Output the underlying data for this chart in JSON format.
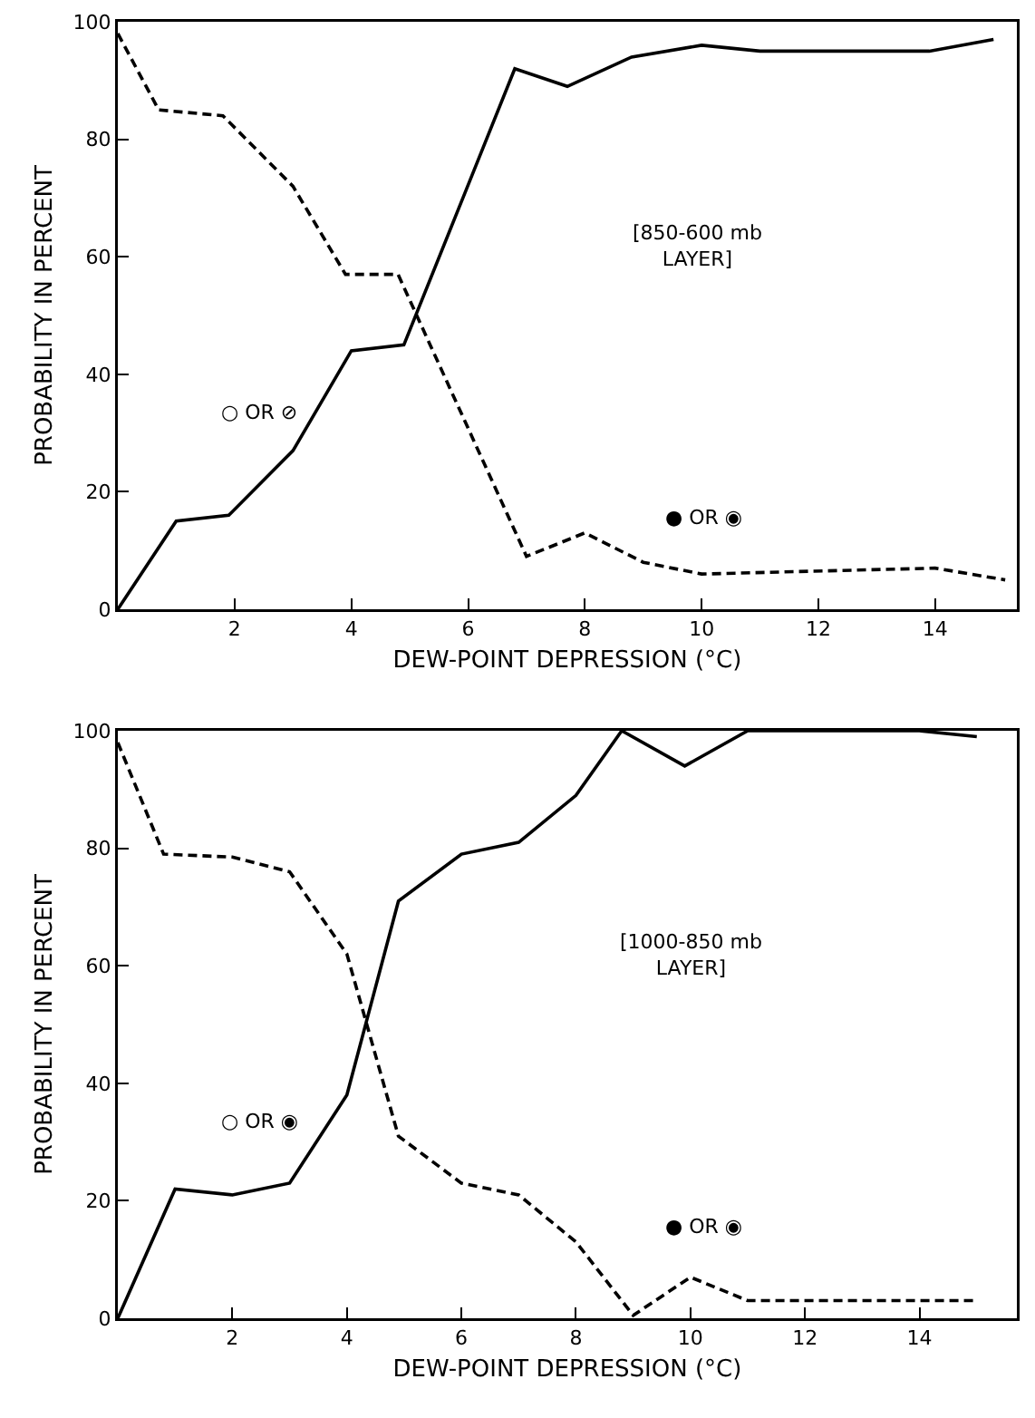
{
  "chart_data": [
    {
      "type": "line",
      "xlabel": "DEW-POINT DEPRESSION (°C)",
      "ylabel": "PROBABILITY IN PERCENT",
      "xlim": [
        0,
        15.4
      ],
      "ylim": [
        0,
        100
      ],
      "xticks": [
        2,
        4,
        6,
        8,
        10,
        12,
        14
      ],
      "yticks": [
        0,
        20,
        40,
        60,
        80,
        100
      ],
      "grid": false,
      "series": [
        {
          "color": "#000000",
          "line_style": "solid",
          "x": [
            0,
            1,
            1.9,
            3,
            4,
            4.9,
            6.8,
            7.7,
            8.8,
            10,
            11,
            13.9,
            15
          ],
          "values": [
            0,
            15,
            16,
            27,
            44,
            45,
            92,
            89,
            94,
            96,
            95,
            95,
            97
          ]
        },
        {
          "color": "#000000",
          "line_style": "dashed",
          "x": [
            0,
            0.7,
            1.8,
            3,
            3.9,
            4.8,
            7,
            8,
            9,
            10,
            14,
            15.2
          ],
          "values": [
            98,
            85,
            84,
            72,
            57,
            57,
            9,
            13,
            8,
            6,
            7,
            5
          ]
        }
      ],
      "annotations": [
        "○ OR ⊘",
        "● OR ◉",
        "[850-600 mb\nLAYER]"
      ]
    },
    {
      "type": "line",
      "xlabel": "DEW-POINT DEPRESSION (°C)",
      "ylabel": "PROBABILITY IN PERCENT",
      "xlim": [
        0,
        15.7
      ],
      "ylim": [
        0,
        100
      ],
      "xticks": [
        2,
        4,
        6,
        8,
        10,
        12,
        14
      ],
      "yticks": [
        0,
        20,
        40,
        60,
        80,
        100
      ],
      "grid": false,
      "series": [
        {
          "color": "#000000",
          "line_style": "solid",
          "x": [
            0,
            1,
            2,
            3,
            4,
            4.9,
            6,
            7,
            8,
            8.8,
            9.9,
            11,
            14,
            15
          ],
          "values": [
            0,
            22,
            21,
            23,
            38,
            71,
            79,
            81,
            89,
            100,
            94,
            100,
            100,
            99
          ]
        },
        {
          "color": "#000000",
          "line_style": "dashed",
          "x": [
            0,
            0.8,
            2,
            3,
            4,
            4.9,
            6,
            7,
            8,
            9,
            10,
            11,
            15
          ],
          "values": [
            98,
            79,
            78.5,
            76,
            62,
            31,
            23,
            21,
            13,
            0.5,
            7,
            3,
            3
          ]
        }
      ],
      "annotations": [
        "○ OR ◉",
        "● OR ◉",
        "[1000-850 mb\nLAYER]"
      ]
    }
  ]
}
